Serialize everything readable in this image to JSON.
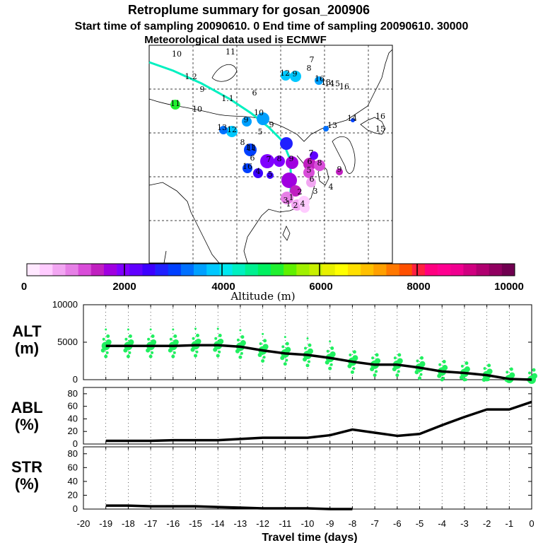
{
  "title": "Retroplume summary for gosan_200906",
  "subtitle": "Start time of sampling 20090610.    0     End time of sampling 20090610. 30000",
  "met_note": "Meteorological data used is ECMWF",
  "colorbar": {
    "label": "Altitude  (m)",
    "ticks": [
      "0",
      "2000",
      "4000",
      "6000",
      "8000",
      "10000"
    ],
    "colors": [
      "#ffe8ff",
      "#ffccff",
      "#f2a6f2",
      "#e680e6",
      "#d94dd9",
      "#c020c0",
      "#a000e0",
      "#8000ff",
      "#6000ff",
      "#3c00ff",
      "#2020ff",
      "#0040ff",
      "#0070ff",
      "#00a0ff",
      "#00c8ff",
      "#00e8f0",
      "#00f0c0",
      "#00f090",
      "#00f060",
      "#20f030",
      "#60f000",
      "#a0f000",
      "#c8f000",
      "#e8f000",
      "#ffff00",
      "#ffe000",
      "#ffc000",
      "#ffa000",
      "#ff7800",
      "#ff5000",
      "#ff2040",
      "#ff0080",
      "#ff0090",
      "#f00090",
      "#d00080",
      "#b00070",
      "#900060",
      "#700050"
    ]
  },
  "map_labels": {
    "points": [
      "10",
      "11",
      "1.2",
      "9",
      "11",
      "1.1",
      "6",
      "11",
      "10",
      "10",
      "9",
      "9",
      "7",
      "8",
      "16",
      "16",
      "15",
      "14",
      "13",
      "12",
      "9",
      "5",
      "13",
      "12",
      "8",
      "11",
      "6",
      "16",
      "4",
      "5",
      "7",
      "8",
      "9",
      "6",
      "7",
      "8",
      "9",
      "5",
      "6",
      "4",
      "3",
      "2",
      "1",
      "4",
      "3",
      "2",
      "1",
      "13",
      "14",
      "16",
      "15"
    ]
  },
  "chart_data": [
    {
      "type": "line",
      "name": "ALT",
      "label_line1": "ALT",
      "label_line2": "(m)",
      "x": [
        -19,
        -18,
        -17,
        -16,
        -15,
        -14,
        -13,
        -12,
        -11,
        -10,
        -9,
        -8,
        -7,
        -6,
        -5,
        -4,
        -3,
        -2,
        -1,
        0
      ],
      "values": [
        4500,
        4500,
        4500,
        4500,
        4600,
        4600,
        4400,
        3900,
        3500,
        3300,
        2900,
        2400,
        2000,
        2000,
        1600,
        1100,
        900,
        600,
        100,
        0
      ],
      "ylim": [
        0,
        10000
      ],
      "yticks": [
        "0",
        "5000",
        "10000"
      ],
      "scatter_note": "green plume particle dots"
    },
    {
      "type": "line",
      "name": "ABL",
      "label_line1": "ABL",
      "label_line2": "(%)",
      "x": [
        -19,
        -18,
        -17,
        -16,
        -15,
        -14,
        -13,
        -12,
        -11,
        -10,
        -9,
        -8,
        -7,
        -6,
        -5,
        -4,
        -3,
        -2,
        -1,
        0
      ],
      "values": [
        5,
        5,
        5,
        6,
        6,
        6,
        8,
        10,
        10,
        10,
        14,
        23,
        18,
        13,
        16,
        30,
        43,
        55,
        55,
        67
      ],
      "ylim": [
        0,
        90
      ],
      "yticks": [
        "0",
        "20",
        "40",
        "60",
        "80"
      ]
    },
    {
      "type": "line",
      "name": "STR",
      "label_line1": "STR",
      "label_line2": "(%)",
      "x": [
        -19,
        -18,
        -17,
        -16,
        -15,
        -14,
        -13,
        -12,
        -11,
        -10,
        -9,
        -8
      ],
      "values": [
        5,
        5,
        4,
        4,
        4,
        3,
        2,
        1,
        1,
        1,
        0,
        0
      ],
      "ylim": [
        0,
        90
      ],
      "yticks": [
        "0",
        "20",
        "40",
        "60",
        "80"
      ]
    }
  ],
  "xaxis": {
    "label": "Travel time (days)",
    "ticks": [
      "-20",
      "-19",
      "-18",
      "-17",
      "-16",
      "-15",
      "-14",
      "-13",
      "-12",
      "-11",
      "-10",
      "-9",
      "-8",
      "-7",
      "-6",
      "-5",
      "-4",
      "-3",
      "-2",
      "-1",
      "0"
    ]
  }
}
